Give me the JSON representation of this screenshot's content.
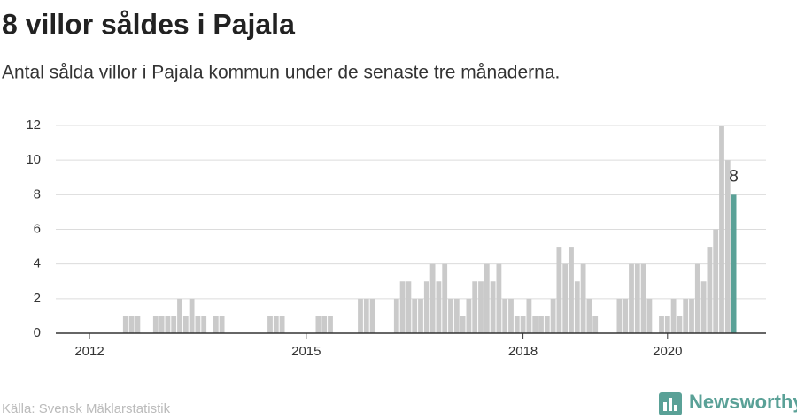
{
  "chart_data": {
    "type": "bar",
    "title": "8 villor såldes i Pajala",
    "subtitle": "Antal sålda villor i Pajala kommun under de senaste tre månaderna.",
    "source": "Källa: Svensk Mäklarstatistik",
    "brand": "Newsworthy",
    "categories": [
      null,
      null,
      null,
      null,
      null,
      "2012",
      null,
      null,
      null,
      null,
      null,
      null,
      null,
      null,
      null,
      null,
      null,
      null,
      null,
      null,
      null,
      null,
      null,
      null,
      null,
      null,
      null,
      null,
      null,
      null,
      null,
      null,
      null,
      null,
      null,
      null,
      null,
      null,
      null,
      null,
      null,
      "2015",
      null,
      null,
      null,
      null,
      null,
      null,
      null,
      null,
      null,
      null,
      null,
      null,
      null,
      null,
      null,
      null,
      null,
      null,
      null,
      null,
      null,
      null,
      null,
      null,
      null,
      null,
      null,
      null,
      null,
      null,
      null,
      null,
      null,
      null,
      null,
      "2018",
      null,
      null,
      null,
      null,
      null,
      null,
      null,
      null,
      null,
      null,
      null,
      null,
      null,
      null,
      null,
      null,
      null,
      null,
      null,
      null,
      null,
      null,
      null,
      "2020",
      null,
      null,
      null,
      null,
      null,
      null,
      null,
      null,
      null,
      null,
      null
    ],
    "values": [
      0,
      0,
      0,
      0,
      0,
      0,
      0,
      0,
      0,
      0,
      0,
      1,
      1,
      1,
      0,
      0,
      1,
      1,
      1,
      1,
      2,
      1,
      2,
      1,
      1,
      0,
      1,
      1,
      0,
      0,
      0,
      0,
      0,
      0,
      0,
      1,
      1,
      1,
      0,
      0,
      0,
      0,
      0,
      1,
      1,
      1,
      0,
      0,
      0,
      0,
      2,
      2,
      2,
      0,
      0,
      0,
      2,
      3,
      3,
      2,
      2,
      3,
      4,
      3,
      4,
      2,
      2,
      1,
      2,
      3,
      3,
      4,
      3,
      4,
      2,
      2,
      1,
      1,
      2,
      1,
      1,
      1,
      2,
      5,
      4,
      5,
      3,
      4,
      2,
      1,
      0,
      0,
      0,
      2,
      2,
      4,
      4,
      4,
      2,
      0,
      1,
      1,
      2,
      1,
      2,
      2,
      4,
      3,
      5,
      6,
      12,
      10,
      8
    ],
    "color": "#cacaca",
    "highlight_color": "#5aa197",
    "ylim": [
      0,
      12
    ],
    "yticks": [
      0,
      2,
      4,
      6,
      8,
      10,
      12
    ],
    "grid": true
  }
}
